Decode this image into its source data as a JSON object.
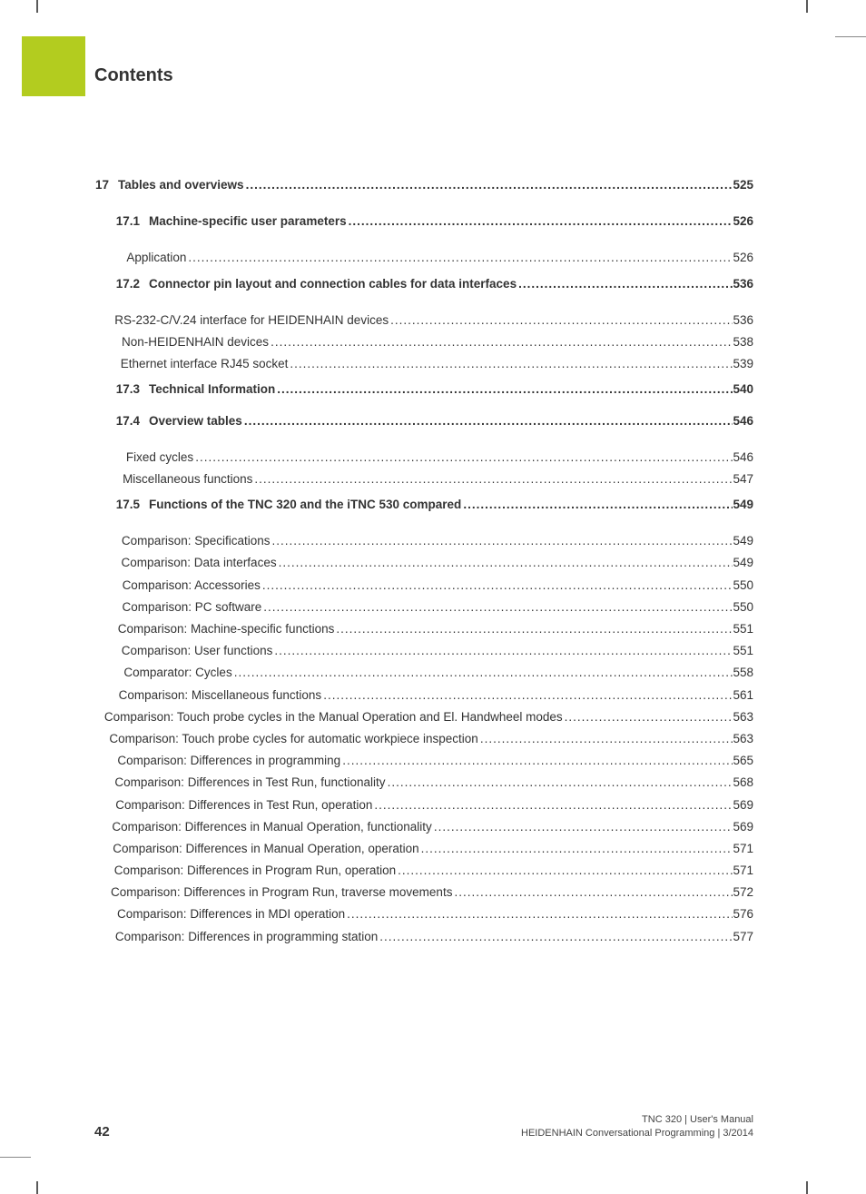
{
  "colors": {
    "accent": "#b3cc1f",
    "band_bg": "#dedede",
    "band_bar": "#8e8e8e",
    "text": "#333333",
    "crop": "#5a5a5a"
  },
  "typography": {
    "title_fontsize": 20,
    "row_fontsize": 13.5,
    "footer_page_fontsize": 15,
    "footer_text_fontsize": 11,
    "font_family": "Arial"
  },
  "title": "Contents",
  "chapter": {
    "num": "17",
    "label": "Tables and overviews",
    "page": "525"
  },
  "s1": {
    "num": "17.1",
    "label": "Machine-specific user parameters",
    "page": "526"
  },
  "s1_items": [
    {
      "label": "Application",
      "page": "526"
    }
  ],
  "s2": {
    "num": "17.2",
    "label": "Connector pin layout and connection cables for data interfaces",
    "page": "536"
  },
  "s2_items": [
    {
      "label": "RS-232-C/V.24 interface for HEIDENHAIN devices",
      "page": "536"
    },
    {
      "label": "Non-HEIDENHAIN devices",
      "page": "538"
    },
    {
      "label": "Ethernet interface RJ45 socket",
      "page": "539"
    }
  ],
  "s3": {
    "num": "17.3",
    "label": "Technical Information",
    "page": "540"
  },
  "s4": {
    "num": "17.4",
    "label": "Overview tables",
    "page": "546"
  },
  "s4_items": [
    {
      "label": "Fixed cycles",
      "page": "546"
    },
    {
      "label": "Miscellaneous functions",
      "page": "547"
    }
  ],
  "s5": {
    "num": "17.5",
    "label": "Functions of the TNC 320 and the iTNC 530 compared",
    "page": "549"
  },
  "s5_items": [
    {
      "label": "Comparison: Specifications",
      "page": "549"
    },
    {
      "label": "Comparison: Data interfaces",
      "page": "549"
    },
    {
      "label": "Comparison: Accessories",
      "page": "550"
    },
    {
      "label": "Comparison: PC software",
      "page": "550"
    },
    {
      "label": "Comparison: Machine-specific functions",
      "page": "551"
    },
    {
      "label": "Comparison: User functions",
      "page": "551"
    },
    {
      "label": "Comparator: Cycles",
      "page": "558"
    },
    {
      "label": "Comparison: Miscellaneous functions",
      "page": "561"
    },
    {
      "label": "Comparison: Touch probe cycles in the Manual Operation and El. Handwheel modes",
      "page": "563"
    },
    {
      "label": "Comparison: Touch probe cycles for automatic workpiece inspection",
      "page": "563"
    },
    {
      "label": "Comparison: Differences in programming",
      "page": "565"
    },
    {
      "label": "Comparison: Differences in Test Run, functionality",
      "page": "568"
    },
    {
      "label": "Comparison: Differences in Test Run, operation",
      "page": "569"
    },
    {
      "label": "Comparison: Differences in Manual Operation, functionality",
      "page": "569"
    },
    {
      "label": "Comparison: Differences in Manual Operation, operation",
      "page": "571"
    },
    {
      "label": "Comparison: Differences in Program Run, operation",
      "page": "571"
    },
    {
      "label": "Comparison: Differences in Program Run, traverse movements",
      "page": "572"
    },
    {
      "label": "Comparison: Differences in MDI operation",
      "page": "576"
    },
    {
      "label": "Comparison: Differences in programming station",
      "page": "577"
    }
  ],
  "footer": {
    "page_number": "42",
    "line1": "TNC 320 | User's Manual",
    "line2": "HEIDENHAIN Conversational Programming | 3/2014"
  }
}
